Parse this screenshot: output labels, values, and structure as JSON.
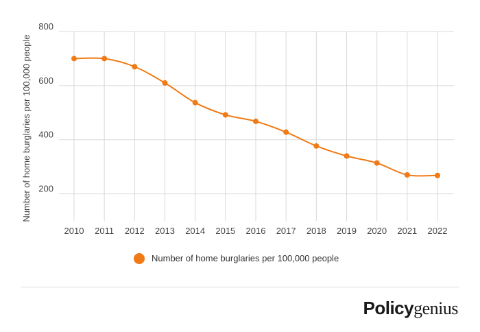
{
  "chart_data": {
    "type": "line",
    "x": [
      "2010",
      "2011",
      "2012",
      "2013",
      "2014",
      "2015",
      "2016",
      "2017",
      "2018",
      "2019",
      "2020",
      "2021",
      "2022"
    ],
    "series": [
      {
        "name": "Number of home burglaries per 100,000 people",
        "values": [
          700,
          700,
          670,
          610,
          537,
          492,
          468,
          428,
          377,
          340,
          314,
          270,
          268
        ],
        "color": "#f07a15"
      }
    ],
    "ylabel": "Number of home burglaries per 100,000 people",
    "ylim": [
      100,
      800
    ],
    "yticks": [
      200,
      400,
      600,
      800
    ],
    "grid": true,
    "legend_position": "bottom"
  },
  "brand": {
    "part1": "Policy",
    "part2": "genius"
  }
}
